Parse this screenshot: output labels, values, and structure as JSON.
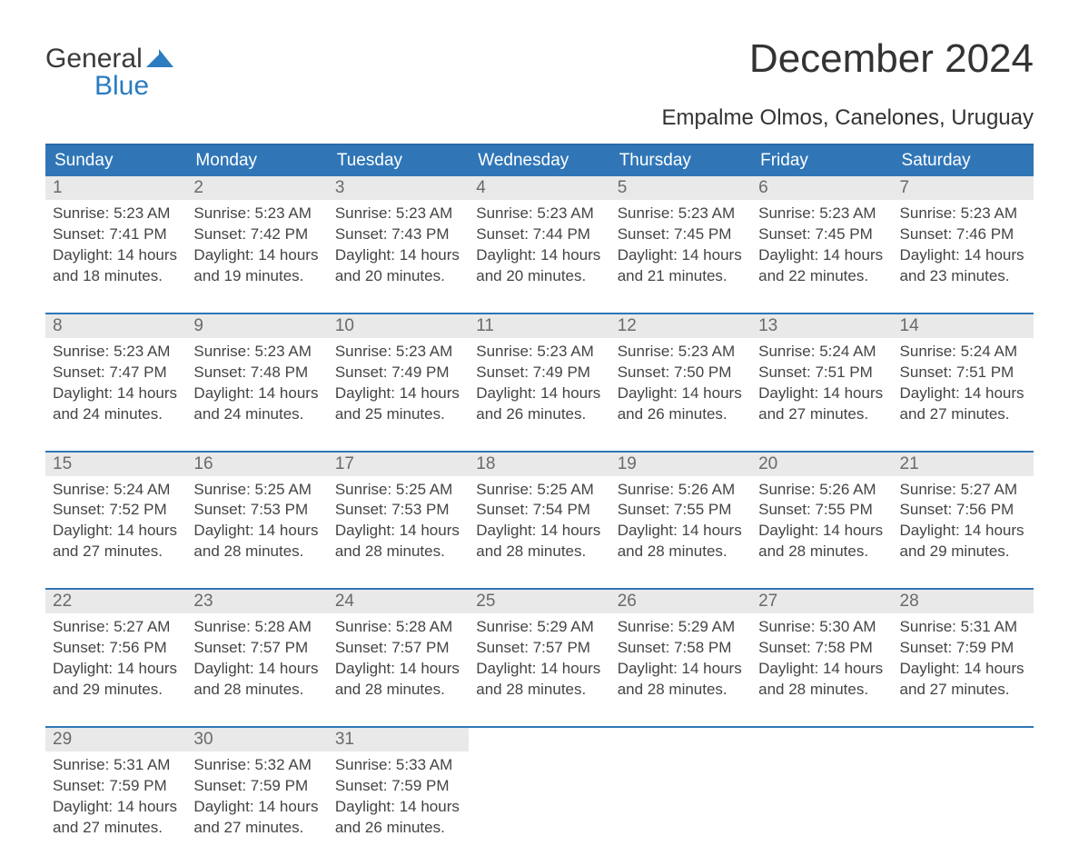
{
  "brand": {
    "line1": "General",
    "line2": "Blue",
    "accent_color": "#2b7cc0"
  },
  "title": "December 2024",
  "location": "Empalme Olmos, Canelones, Uruguay",
  "colors": {
    "header_bg": "#3076b7",
    "header_text": "#ffffff",
    "week_sep": "#3076b7",
    "daynum_bg": "#e9e9e9",
    "daynum_text": "#6a6a6a",
    "body_text": "#444444",
    "page_bg": "#ffffff"
  },
  "dayHeaders": [
    "Sunday",
    "Monday",
    "Tuesday",
    "Wednesday",
    "Thursday",
    "Friday",
    "Saturday"
  ],
  "weeks": [
    [
      {
        "day": "1",
        "l1": "Sunrise: 5:23 AM",
        "l2": "Sunset: 7:41 PM",
        "l3": "Daylight: 14 hours",
        "l4": "and 18 minutes."
      },
      {
        "day": "2",
        "l1": "Sunrise: 5:23 AM",
        "l2": "Sunset: 7:42 PM",
        "l3": "Daylight: 14 hours",
        "l4": "and 19 minutes."
      },
      {
        "day": "3",
        "l1": "Sunrise: 5:23 AM",
        "l2": "Sunset: 7:43 PM",
        "l3": "Daylight: 14 hours",
        "l4": "and 20 minutes."
      },
      {
        "day": "4",
        "l1": "Sunrise: 5:23 AM",
        "l2": "Sunset: 7:44 PM",
        "l3": "Daylight: 14 hours",
        "l4": "and 20 minutes."
      },
      {
        "day": "5",
        "l1": "Sunrise: 5:23 AM",
        "l2": "Sunset: 7:45 PM",
        "l3": "Daylight: 14 hours",
        "l4": "and 21 minutes."
      },
      {
        "day": "6",
        "l1": "Sunrise: 5:23 AM",
        "l2": "Sunset: 7:45 PM",
        "l3": "Daylight: 14 hours",
        "l4": "and 22 minutes."
      },
      {
        "day": "7",
        "l1": "Sunrise: 5:23 AM",
        "l2": "Sunset: 7:46 PM",
        "l3": "Daylight: 14 hours",
        "l4": "and 23 minutes."
      }
    ],
    [
      {
        "day": "8",
        "l1": "Sunrise: 5:23 AM",
        "l2": "Sunset: 7:47 PM",
        "l3": "Daylight: 14 hours",
        "l4": "and 24 minutes."
      },
      {
        "day": "9",
        "l1": "Sunrise: 5:23 AM",
        "l2": "Sunset: 7:48 PM",
        "l3": "Daylight: 14 hours",
        "l4": "and 24 minutes."
      },
      {
        "day": "10",
        "l1": "Sunrise: 5:23 AM",
        "l2": "Sunset: 7:49 PM",
        "l3": "Daylight: 14 hours",
        "l4": "and 25 minutes."
      },
      {
        "day": "11",
        "l1": "Sunrise: 5:23 AM",
        "l2": "Sunset: 7:49 PM",
        "l3": "Daylight: 14 hours",
        "l4": "and 26 minutes."
      },
      {
        "day": "12",
        "l1": "Sunrise: 5:23 AM",
        "l2": "Sunset: 7:50 PM",
        "l3": "Daylight: 14 hours",
        "l4": "and 26 minutes."
      },
      {
        "day": "13",
        "l1": "Sunrise: 5:24 AM",
        "l2": "Sunset: 7:51 PM",
        "l3": "Daylight: 14 hours",
        "l4": "and 27 minutes."
      },
      {
        "day": "14",
        "l1": "Sunrise: 5:24 AM",
        "l2": "Sunset: 7:51 PM",
        "l3": "Daylight: 14 hours",
        "l4": "and 27 minutes."
      }
    ],
    [
      {
        "day": "15",
        "l1": "Sunrise: 5:24 AM",
        "l2": "Sunset: 7:52 PM",
        "l3": "Daylight: 14 hours",
        "l4": "and 27 minutes."
      },
      {
        "day": "16",
        "l1": "Sunrise: 5:25 AM",
        "l2": "Sunset: 7:53 PM",
        "l3": "Daylight: 14 hours",
        "l4": "and 28 minutes."
      },
      {
        "day": "17",
        "l1": "Sunrise: 5:25 AM",
        "l2": "Sunset: 7:53 PM",
        "l3": "Daylight: 14 hours",
        "l4": "and 28 minutes."
      },
      {
        "day": "18",
        "l1": "Sunrise: 5:25 AM",
        "l2": "Sunset: 7:54 PM",
        "l3": "Daylight: 14 hours",
        "l4": "and 28 minutes."
      },
      {
        "day": "19",
        "l1": "Sunrise: 5:26 AM",
        "l2": "Sunset: 7:55 PM",
        "l3": "Daylight: 14 hours",
        "l4": "and 28 minutes."
      },
      {
        "day": "20",
        "l1": "Sunrise: 5:26 AM",
        "l2": "Sunset: 7:55 PM",
        "l3": "Daylight: 14 hours",
        "l4": "and 28 minutes."
      },
      {
        "day": "21",
        "l1": "Sunrise: 5:27 AM",
        "l2": "Sunset: 7:56 PM",
        "l3": "Daylight: 14 hours",
        "l4": "and 29 minutes."
      }
    ],
    [
      {
        "day": "22",
        "l1": "Sunrise: 5:27 AM",
        "l2": "Sunset: 7:56 PM",
        "l3": "Daylight: 14 hours",
        "l4": "and 29 minutes."
      },
      {
        "day": "23",
        "l1": "Sunrise: 5:28 AM",
        "l2": "Sunset: 7:57 PM",
        "l3": "Daylight: 14 hours",
        "l4": "and 28 minutes."
      },
      {
        "day": "24",
        "l1": "Sunrise: 5:28 AM",
        "l2": "Sunset: 7:57 PM",
        "l3": "Daylight: 14 hours",
        "l4": "and 28 minutes."
      },
      {
        "day": "25",
        "l1": "Sunrise: 5:29 AM",
        "l2": "Sunset: 7:57 PM",
        "l3": "Daylight: 14 hours",
        "l4": "and 28 minutes."
      },
      {
        "day": "26",
        "l1": "Sunrise: 5:29 AM",
        "l2": "Sunset: 7:58 PM",
        "l3": "Daylight: 14 hours",
        "l4": "and 28 minutes."
      },
      {
        "day": "27",
        "l1": "Sunrise: 5:30 AM",
        "l2": "Sunset: 7:58 PM",
        "l3": "Daylight: 14 hours",
        "l4": "and 28 minutes."
      },
      {
        "day": "28",
        "l1": "Sunrise: 5:31 AM",
        "l2": "Sunset: 7:59 PM",
        "l3": "Daylight: 14 hours",
        "l4": "and 27 minutes."
      }
    ],
    [
      {
        "day": "29",
        "l1": "Sunrise: 5:31 AM",
        "l2": "Sunset: 7:59 PM",
        "l3": "Daylight: 14 hours",
        "l4": "and 27 minutes."
      },
      {
        "day": "30",
        "l1": "Sunrise: 5:32 AM",
        "l2": "Sunset: 7:59 PM",
        "l3": "Daylight: 14 hours",
        "l4": "and 27 minutes."
      },
      {
        "day": "31",
        "l1": "Sunrise: 5:33 AM",
        "l2": "Sunset: 7:59 PM",
        "l3": "Daylight: 14 hours",
        "l4": "and 26 minutes."
      },
      null,
      null,
      null,
      null
    ]
  ]
}
